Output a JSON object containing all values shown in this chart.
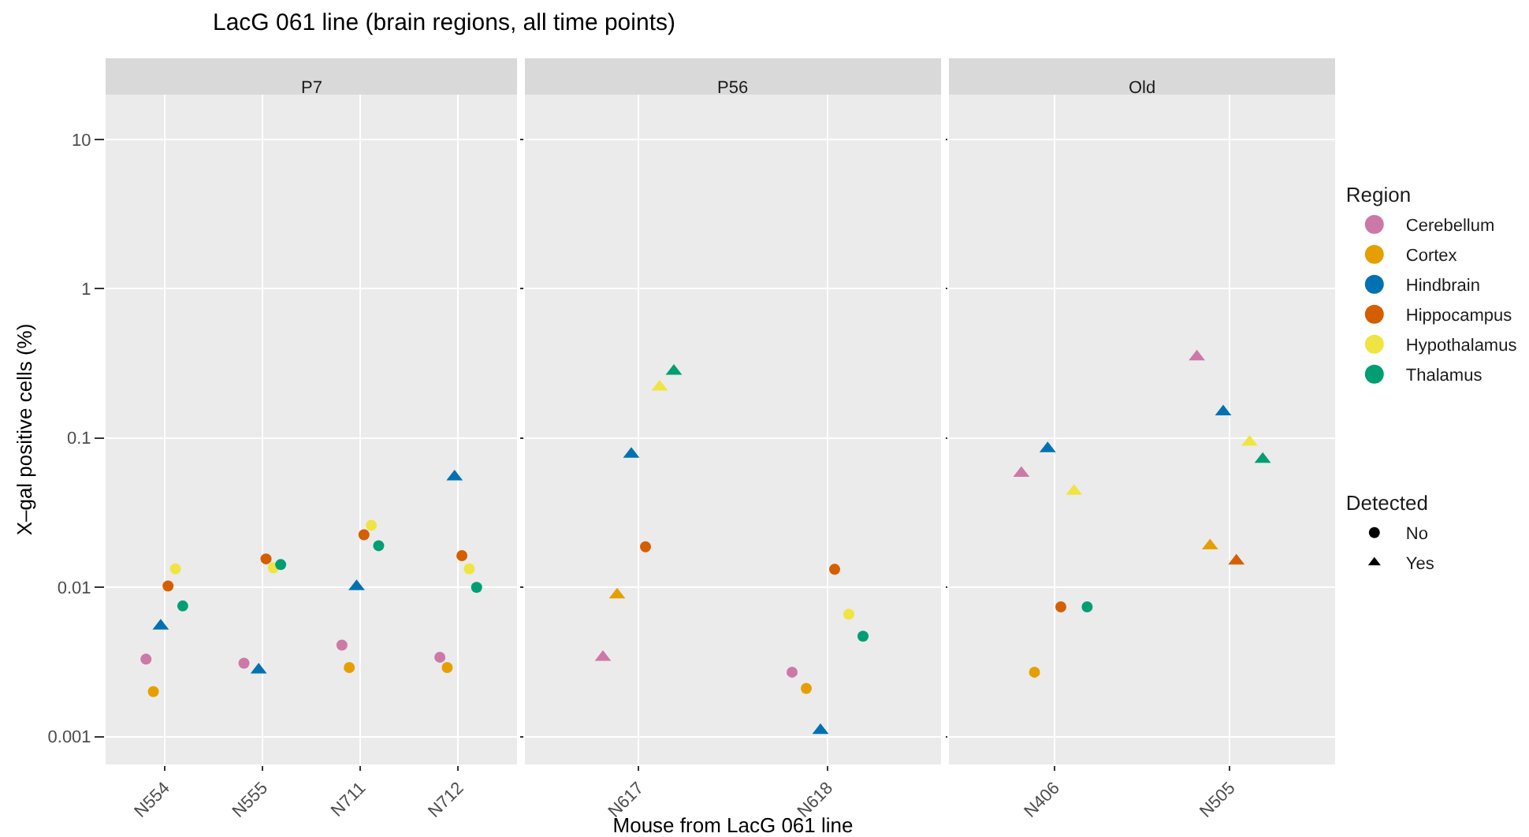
{
  "chart_data": [
    {
      "type": "scatter",
      "title": "LacG 061 line (brain regions, all time points)",
      "subtitle": "P7",
      "ylabel": "X–gal positive cells (%)",
      "categories": [
        "N554",
        "N555",
        "N711",
        "N712"
      ],
      "log": "y",
      "ylim": [
        0.00065,
        20
      ],
      "yticks": [
        0.001,
        0.01,
        0.1,
        1,
        10
      ],
      "grid": true,
      "legend": false,
      "series": [
        {
          "color": "#cc79a7",
          "marker": "circle",
          "values": [
            0.0033,
            0.0031,
            0.0041,
            0.0034
          ]
        },
        {
          "color": "#e69f00",
          "marker": "circle",
          "values": [
            0.002,
            null,
            0.0029,
            0.0029
          ]
        },
        {
          "color": "#0072b2",
          "marker": "triangle",
          "values": [
            0.0055,
            0.0028,
            0.0101,
            0.055
          ]
        },
        {
          "color": "#d55e00",
          "marker": "circle",
          "values": [
            0.0102,
            0.0155,
            0.0225,
            0.0163
          ]
        },
        {
          "color": "#f0e442",
          "marker": "circle",
          "values": [
            0.0133,
            0.0135,
            0.026,
            0.0133
          ]
        },
        {
          "color": "#009e73",
          "marker": "circle",
          "values": [
            0.0075,
            0.0142,
            0.019,
            0.01
          ]
        }
      ]
    },
    {
      "type": "scatter",
      "subtitle": "P56",
      "xlabel": "Mouse from LacG 061 line",
      "categories": [
        "N617",
        "N618"
      ],
      "log": "y",
      "ylim": [
        0.00065,
        20
      ],
      "yticks": [
        0.001,
        0.01,
        0.1,
        1,
        10
      ],
      "grid": true,
      "legend": false,
      "tick_labels": "x",
      "series": [
        {
          "color": "#cc79a7",
          "marker": "triangle",
          "values": [
            0.0034,
            null
          ]
        },
        {
          "color": "#cc79a7",
          "marker": "circle",
          "values": [
            null,
            0.0027
          ]
        },
        {
          "color": "#e69f00",
          "marker": "triangle",
          "values": [
            0.0089,
            null
          ]
        },
        {
          "color": "#e69f00",
          "marker": "circle",
          "values": [
            null,
            0.0021
          ]
        },
        {
          "color": "#0072b2",
          "marker": "triangle",
          "values": [
            0.078,
            0.0011
          ]
        },
        {
          "color": "#d55e00",
          "marker": "circle",
          "values": [
            0.0187,
            0.0132
          ]
        },
        {
          "color": "#f0e442",
          "marker": "triangle",
          "values": [
            0.22,
            null
          ]
        },
        {
          "color": "#f0e442",
          "marker": "circle",
          "values": [
            null,
            0.0066
          ]
        },
        {
          "color": "#009e73",
          "marker": "triangle",
          "values": [
            0.28,
            null
          ]
        },
        {
          "color": "#009e73",
          "marker": "circle",
          "values": [
            null,
            0.0047
          ]
        }
      ]
    },
    {
      "type": "scatter",
      "subtitle": "Old",
      "categories": [
        "N406",
        "N505"
      ],
      "log": "y",
      "ylim": [
        0.00065,
        20
      ],
      "yticks": [
        0.001,
        0.01,
        0.1,
        1,
        10
      ],
      "grid": true,
      "legend": "right",
      "tick_labels": "x",
      "legend_title": "Region",
      "annotations": [
        "Detected"
      ],
      "series": [
        {
          "name": "Cerebellum",
          "color": "#cc79a7",
          "marker": "triangle",
          "values": [
            0.058,
            0.35
          ]
        },
        {
          "name": "Cortex",
          "color": "#e69f00",
          "marker": "circle",
          "values": [
            0.0027,
            null
          ]
        },
        {
          "color": "#e69f00",
          "marker": "triangle",
          "values": [
            null,
            0.019
          ]
        },
        {
          "name": "Hindbrain",
          "color": "#0072b2",
          "marker": "triangle",
          "values": [
            0.085,
            0.15
          ]
        },
        {
          "name": "Hippocampus",
          "color": "#d55e00",
          "marker": "circle",
          "values": [
            0.0074,
            null
          ]
        },
        {
          "color": "#d55e00",
          "marker": "triangle",
          "values": [
            null,
            0.015
          ]
        },
        {
          "name": "Hypothalamus",
          "color": "#f0e442",
          "marker": "triangle",
          "values": [
            0.044,
            0.094
          ]
        },
        {
          "name": "Thalamus",
          "color": "#009e73",
          "marker": "circle",
          "values": [
            0.0074,
            null
          ]
        },
        {
          "color": "#009e73",
          "marker": "triangle",
          "values": [
            null,
            0.072
          ]
        },
        {
          "name": "No",
          "color": "#000000",
          "marker": "circle",
          "values": [
            null,
            null
          ]
        },
        {
          "name": "Yes",
          "color": "#000000",
          "marker": "triangle",
          "values": [
            null,
            null
          ]
        }
      ]
    }
  ]
}
